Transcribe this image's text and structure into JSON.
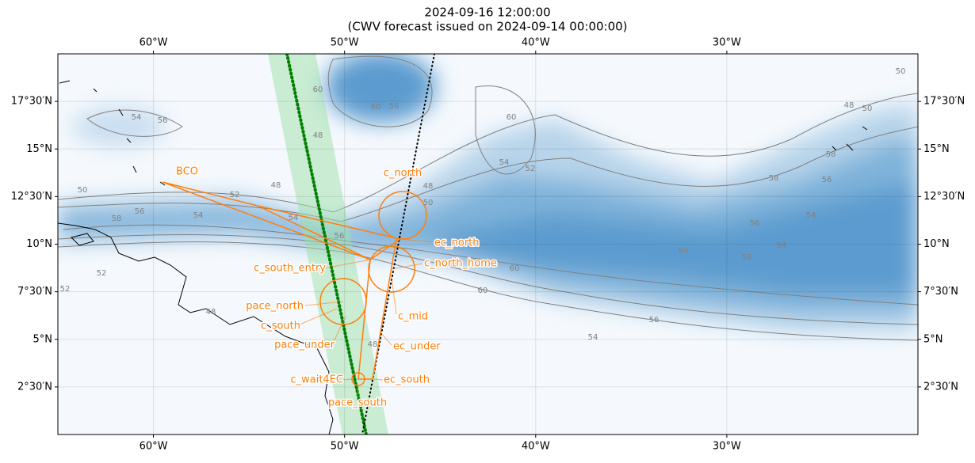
{
  "title": "2024-09-16 12:00:00",
  "subtitle": "(CWV forecast issued on 2024-09-14 00:00:00)",
  "map": {
    "xlim": [
      -65,
      -20
    ],
    "ylim": [
      0,
      20
    ],
    "grid": true,
    "xticks": [
      {
        "value": -60,
        "label": "60°W"
      },
      {
        "value": -50,
        "label": "50°W"
      },
      {
        "value": -40,
        "label": "40°W"
      },
      {
        "value": -30,
        "label": "30°W"
      }
    ],
    "yticks": [
      {
        "value": 2.5,
        "label": "2°30′N"
      },
      {
        "value": 5,
        "label": "5°N"
      },
      {
        "value": 7.5,
        "label": "7°30′N"
      },
      {
        "value": 10,
        "label": "10°N"
      },
      {
        "value": 12.5,
        "label": "12°30′N"
      },
      {
        "value": 15,
        "label": "15°N"
      },
      {
        "value": 17.5,
        "label": "17°30′N"
      }
    ]
  },
  "waypoint_labels": [
    "BCO",
    "c_north",
    "ec_north",
    "c_north_home",
    "c_south_entry",
    "pace_north",
    "c_mid",
    "c_south",
    "pace_under",
    "ec_under",
    "c_wait4EC",
    "ec_south",
    "pace_south"
  ],
  "contour_labels": [
    54,
    56,
    50,
    58,
    56,
    54,
    52,
    48,
    54,
    56,
    52,
    52,
    48,
    48,
    60,
    60,
    56,
    54,
    54,
    58,
    54,
    56,
    54,
    58,
    56,
    58,
    48,
    50,
    50,
    60,
    56,
    60,
    54,
    52,
    48,
    50,
    60,
    48
  ]
}
